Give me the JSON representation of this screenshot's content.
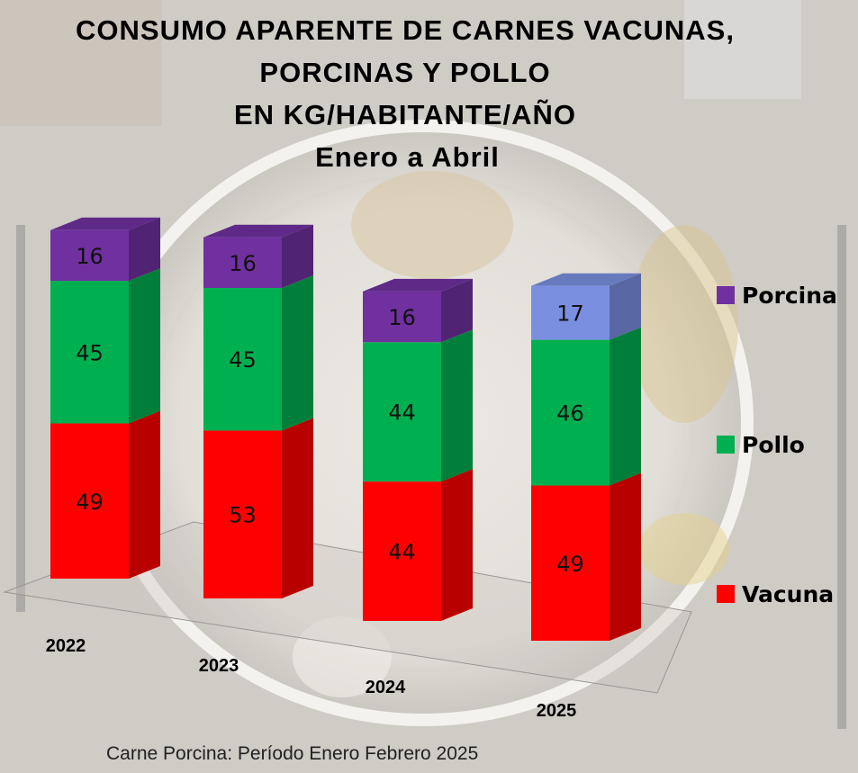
{
  "title_lines": [
    "CONSUMO APARENTE DE CARNES VACUNAS,",
    "PORCINAS Y POLLO",
    "EN KG/HABITANTE/AÑO",
    "Enero a Abril"
  ],
  "footnote": "Carne Porcina: Período Enero  Febrero 2025",
  "colors": {
    "vacuna": "#ff0000",
    "pollo": "#00b050",
    "porcina": "#7030a0",
    "porcina_2025": "#7a8fe0"
  },
  "chart_data": {
    "type": "bar",
    "stacked": true,
    "title": "CONSUMO APARENTE DE CARNES VACUNAS, PORCINAS Y POLLO EN KG/HABITANTE/AÑO Enero a Abril",
    "categories": [
      "2022",
      "2023",
      "2024",
      "2025"
    ],
    "series": [
      {
        "name": "Vacuna",
        "values": [
          49,
          53,
          44,
          49
        ]
      },
      {
        "name": "Pollo",
        "values": [
          45,
          45,
          44,
          46
        ]
      },
      {
        "name": "Porcina",
        "values": [
          16,
          16,
          16,
          17
        ]
      }
    ],
    "legend_position": "right",
    "legend_order": [
      "Porcina",
      "Pollo",
      "Vacuna"
    ],
    "data_labels": true,
    "grid": false
  }
}
